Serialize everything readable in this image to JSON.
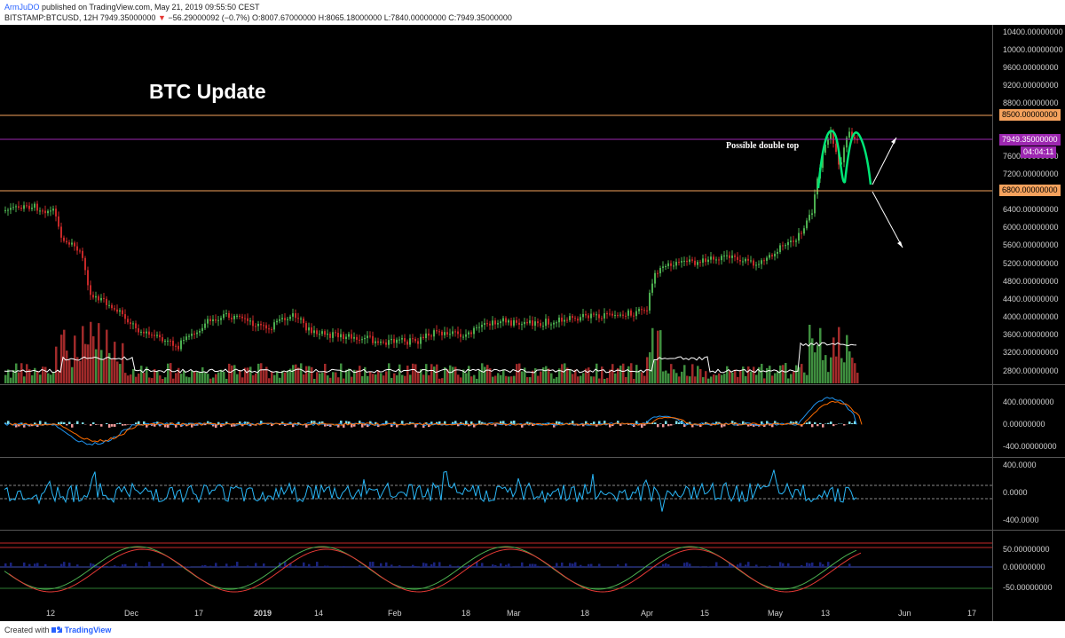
{
  "header": {
    "user": "ArmJuDO",
    "published": "published on TradingView.com, May 21, 2019 09:55:50 CEST",
    "symbol": "BITSTAMP:BTCUSD, 12H",
    "last": "7949.35000000",
    "change_arrow": "▼",
    "change": "−56.29000092 (−0.7%)",
    "open": "O:8007.67000000",
    "high": "H:8065.18000000",
    "low": "L:7840.00000000",
    "close": "C:7949.35000000"
  },
  "main": {
    "title": "BTC Update",
    "annotation": "Possible double top",
    "price_scale": [
      "10400.00000000",
      "10000.00000000",
      "9600.00000000",
      "9200.00000000",
      "8800.00000000",
      "7600.00000000",
      "7200.00000000",
      "6400.00000000",
      "6000.00000000",
      "5600.00000000",
      "5200.00000000",
      "4800.00000000",
      "4400.00000000",
      "4000.00000000",
      "3600.00000000",
      "3200.00000000",
      "2800.00000000"
    ],
    "levels": {
      "upper": "8500.00000000",
      "lower": "6800.00000000",
      "price": "7949.35000000",
      "countdown": "04:04:11"
    }
  },
  "macd_pane": {
    "scale": [
      "400.00000000",
      "0.00000000",
      "-400.00000000"
    ]
  },
  "cci_pane": {
    "scale": [
      "400.0000",
      "0.0000",
      "-400.0000"
    ]
  },
  "stoch_pane": {
    "scale": [
      "50.00000000",
      "0.00000000",
      "-50.00000000"
    ]
  },
  "time_axis": [
    "12",
    "Dec",
    "17",
    "2019",
    "14",
    "Feb",
    "18",
    "Mar",
    "18",
    "Apr",
    "15",
    "May",
    "13",
    "Jun",
    "17"
  ],
  "footer": {
    "created_with": "Created with",
    "brand": "TradingView"
  },
  "colors": {
    "up": "#4caf50",
    "down": "#c62828",
    "level": "#f5a25d",
    "price_line": "#9c27b0",
    "pattern": "#00e676"
  },
  "icons": [
    "tradingview-logo-icon"
  ]
}
